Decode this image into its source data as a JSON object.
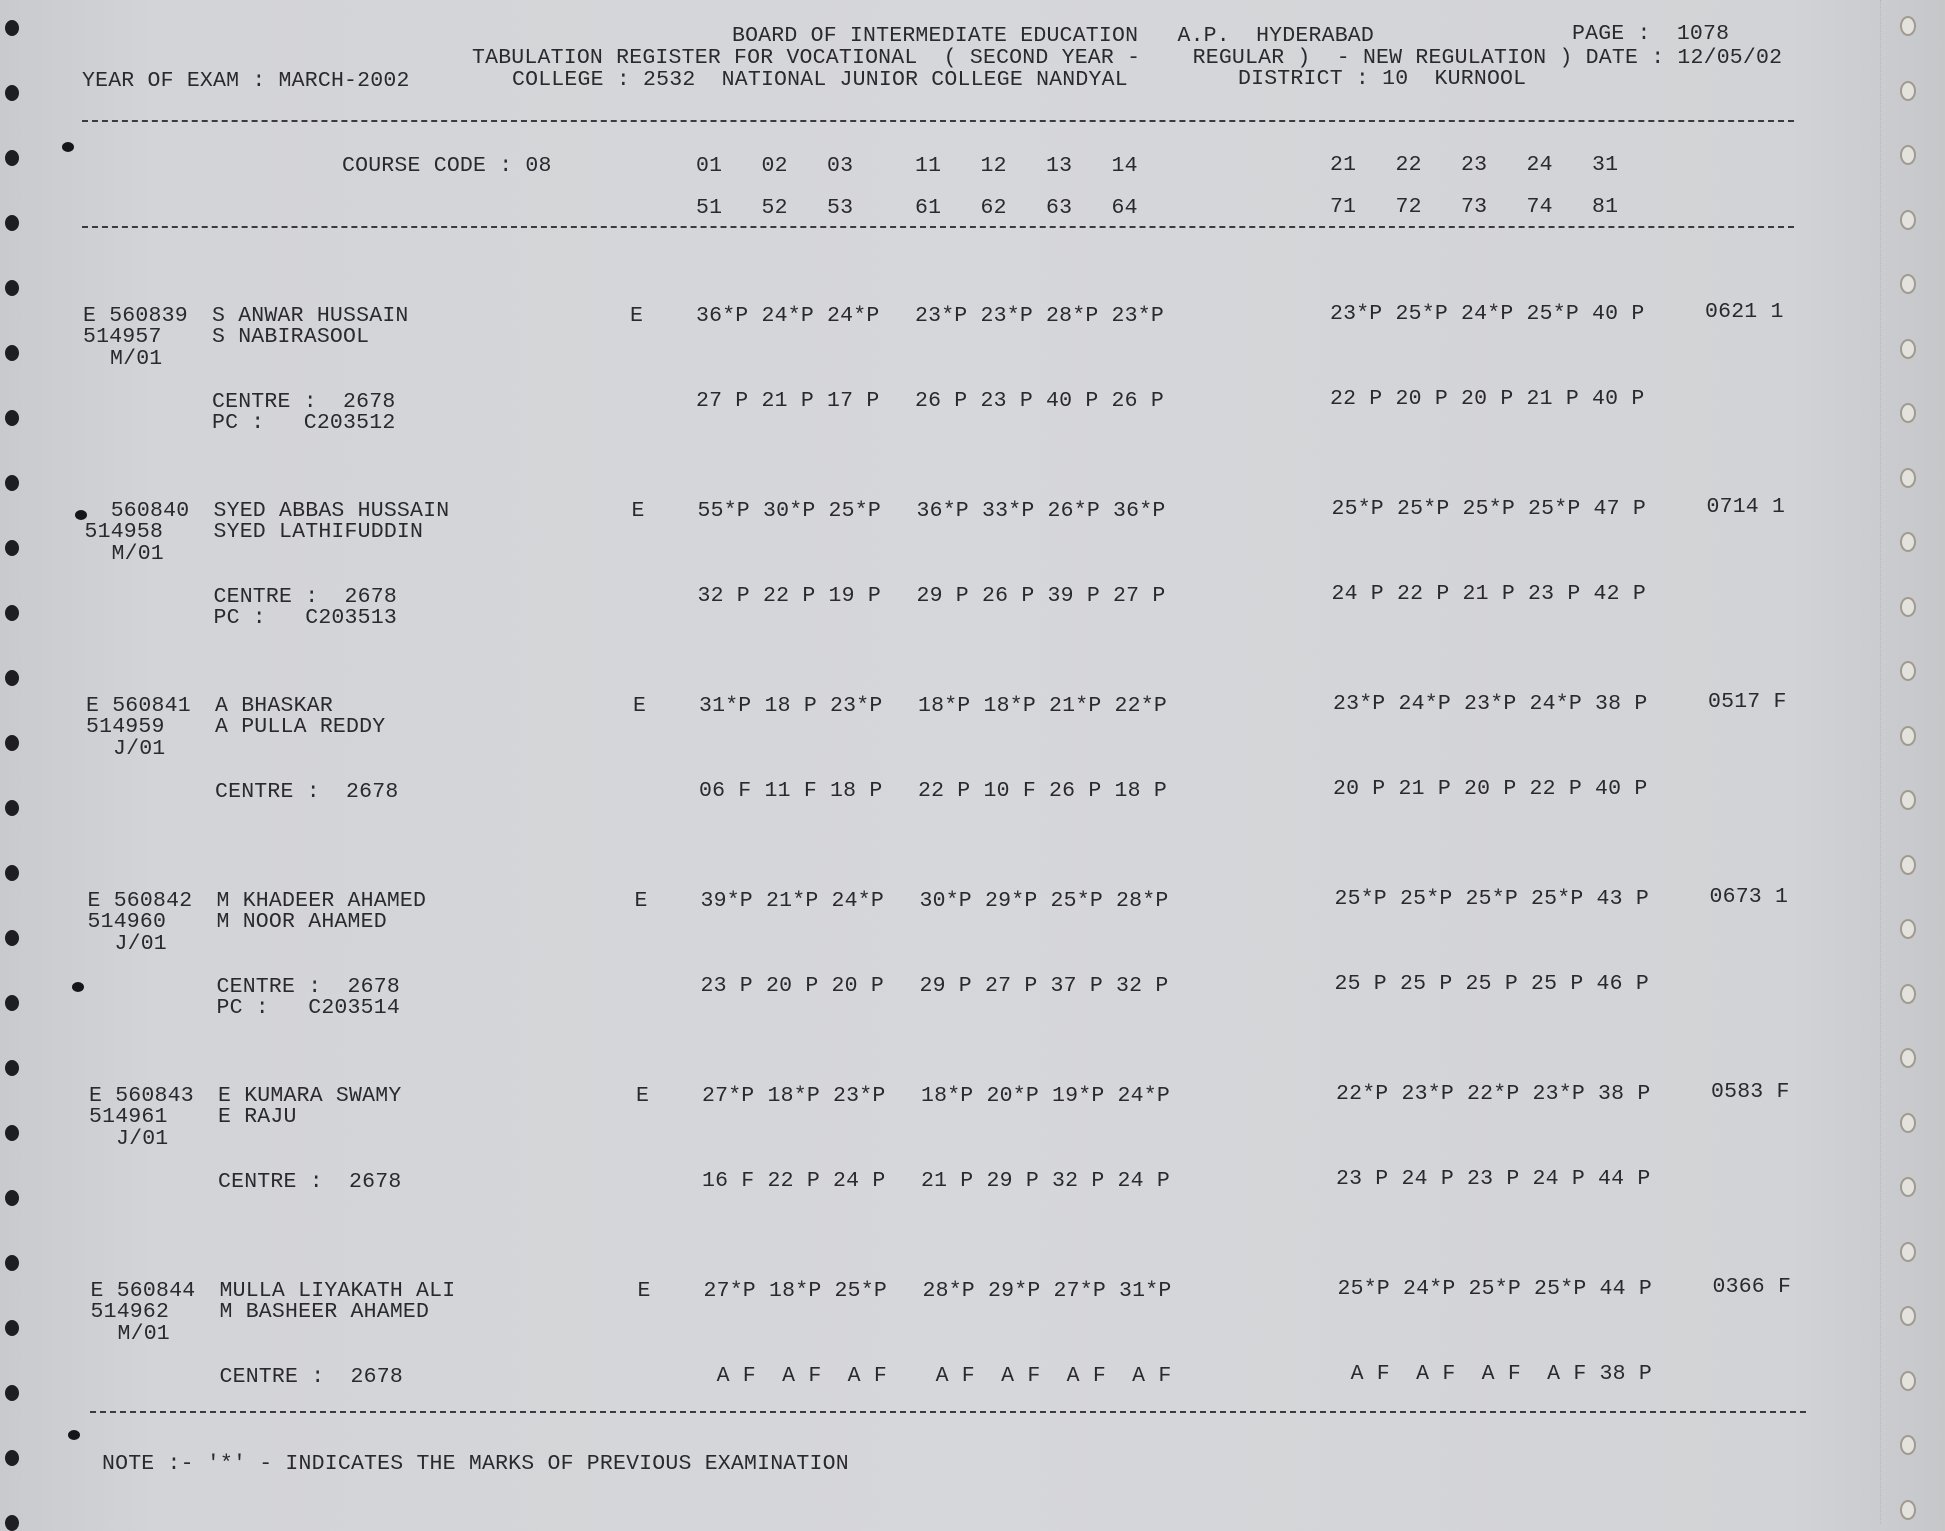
{
  "header": {
    "board": "BOARD OF INTERMEDIATE EDUCATION   A.P.  HYDERABAD",
    "page_label": "PAGE :  1078",
    "register": "TABULATION REGISTER FOR VOCATIONAL  ( SECOND YEAR -    REGULAR )  - NEW REGULATION ) DATE : 12/05/02",
    "year_of_exam": "YEAR OF EXAM : MARCH-2002",
    "college": "COLLEGE : 2532  NATIONAL JUNIOR COLLEGE NANDYAL",
    "district": "DISTRICT : 10  KURNOOL"
  },
  "columns": {
    "course_code": "COURSE CODE : 08",
    "row1": [
      "01   02   03",
      "11   12   13   14",
      "21   22   23   24   31"
    ],
    "row2": [
      "51   52   53",
      "61   62   63   64",
      "71   72   73   74   81"
    ]
  },
  "records": [
    {
      "roll": "E 560839",
      "id": "514957",
      "group": "M/01",
      "name": "S ANWAR HUSSAIN",
      "father": "S NABIRASOOL",
      "stream": "E",
      "marks1": [
        "36*P 24*P 24*P",
        "23*P 23*P 28*P 23*P",
        "23*P 25*P 24*P 25*P 40 P"
      ],
      "result": "0621 1",
      "marks2": [
        "27 P 21 P 17 P",
        "26 P 23 P 40 P 26 P",
        "22 P 20 P 20 P 21 P 40 P"
      ],
      "centre": "CENTRE :  2678",
      "pc": "PC :   C203512"
    },
    {
      "roll": "  560840",
      "id": "514958",
      "group": "M/01",
      "name": "SYED ABBAS HUSSAIN",
      "father": "SYED LATHIFUDDIN",
      "stream": "E",
      "marks1": [
        "55*P 30*P 25*P",
        "36*P 33*P 26*P 36*P",
        "25*P 25*P 25*P 25*P 47 P"
      ],
      "result": "0714 1",
      "marks2": [
        "32 P 22 P 19 P",
        "29 P 26 P 39 P 27 P",
        "24 P 22 P 21 P 23 P 42 P"
      ],
      "centre": "CENTRE :  2678",
      "pc": "PC :   C203513"
    },
    {
      "roll": "E 560841",
      "id": "514959",
      "group": "J/01",
      "name": "A BHASKAR",
      "father": "A PULLA REDDY",
      "stream": "E",
      "marks1": [
        "31*P 18 P 23*P",
        "18*P 18*P 21*P 22*P",
        "23*P 24*P 23*P 24*P 38 P"
      ],
      "result": "0517 F",
      "marks2": [
        "06 F 11 F 18 P",
        "22 P 10 F 26 P 18 P",
        "20 P 21 P 20 P 22 P 40 P"
      ],
      "centre": "CENTRE :  2678",
      "pc": ""
    },
    {
      "roll": "E 560842",
      "id": "514960",
      "group": "J/01",
      "name": "M KHADEER AHAMED",
      "father": "M NOOR AHAMED",
      "stream": "E",
      "marks1": [
        "39*P 21*P 24*P",
        "30*P 29*P 25*P 28*P",
        "25*P 25*P 25*P 25*P 43 P"
      ],
      "result": "0673 1",
      "marks2": [
        "23 P 20 P 20 P",
        "29 P 27 P 37 P 32 P",
        "25 P 25 P 25 P 25 P 46 P"
      ],
      "centre": "CENTRE :  2678",
      "pc": "PC :   C203514"
    },
    {
      "roll": "E 560843",
      "id": "514961",
      "group": "J/01",
      "name": "E KUMARA SWAMY",
      "father": "E RAJU",
      "stream": "E",
      "marks1": [
        "27*P 18*P 23*P",
        "18*P 20*P 19*P 24*P",
        "22*P 23*P 22*P 23*P 38 P"
      ],
      "result": "0583 F",
      "marks2": [
        "16 F 22 P 24 P",
        "21 P 29 P 32 P 24 P",
        "23 P 24 P 23 P 24 P 44 P"
      ],
      "centre": "CENTRE :  2678",
      "pc": ""
    },
    {
      "roll": "E 560844",
      "id": "514962",
      "group": "M/01",
      "name": "MULLA LIYAKATH ALI",
      "father": "M BASHEER AHAMED",
      "stream": "E",
      "marks1": [
        "27*P 18*P 25*P",
        "28*P 29*P 27*P 31*P",
        "25*P 24*P 25*P 25*P 44 P"
      ],
      "result": "0366 F",
      "marks2": [
        " A F  A F  A F",
        " A F  A F  A F  A F",
        " A F  A F  A F  A F 38 P"
      ],
      "centre": "CENTRE :  2678",
      "pc": ""
    }
  ],
  "note": "NOTE :- '*' - INDICATES THE MARKS OF PREVIOUS EXAMINATION"
}
